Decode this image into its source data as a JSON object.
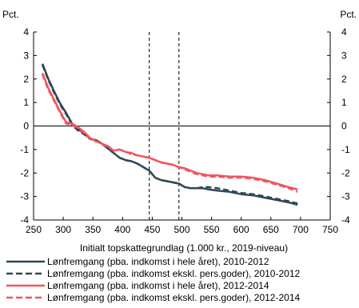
{
  "chart_data": {
    "type": "line",
    "xlabel": "Initialt topskattegrundlag (1.000 kr., 2019-niveau)",
    "ylabel_left": "Pct.",
    "ylabel_right": "Pct.",
    "xlim": [
      250,
      750
    ],
    "ylim": [
      -4,
      4
    ],
    "x_ticks": [
      "250",
      "300",
      "350",
      "400",
      "450",
      "500",
      "550",
      "600",
      "650",
      "700",
      "750"
    ],
    "y_ticks": [
      "-4",
      "-3",
      "-2",
      "-1",
      "0",
      "1",
      "2",
      "3",
      "4"
    ],
    "vertical_lines": [
      445,
      495
    ],
    "grid": false,
    "legend_position": "bottom",
    "series": [
      {
        "name": "Lønfremgang (pba. indkomst i hele året), 2010-2012",
        "color": "#2f4858",
        "dash": "solid",
        "x": [
          265,
          275,
          285,
          295,
          305,
          315,
          325,
          335,
          345,
          355,
          365,
          375,
          385,
          395,
          405,
          415,
          425,
          435,
          445,
          455,
          465,
          475,
          485,
          495,
          505,
          515,
          525,
          535,
          545,
          560,
          580,
          600,
          620,
          640,
          660,
          680,
          695
        ],
        "y": [
          2.65,
          2.0,
          1.45,
          0.95,
          0.55,
          0.1,
          -0.15,
          -0.3,
          -0.55,
          -0.6,
          -0.75,
          -0.95,
          -1.15,
          -1.35,
          -1.45,
          -1.5,
          -1.6,
          -1.75,
          -1.9,
          -2.2,
          -2.3,
          -2.35,
          -2.4,
          -2.45,
          -2.6,
          -2.65,
          -2.65,
          -2.65,
          -2.7,
          -2.75,
          -2.8,
          -2.9,
          -2.95,
          -3.05,
          -3.15,
          -3.25,
          -3.35
        ]
      },
      {
        "name": "Lønfremgang (pba. indkomst ekskl. pers.goder), 2010-2012",
        "color": "#2f4858",
        "dash": "dashed",
        "x": [
          265,
          275,
          285,
          295,
          305,
          315,
          325,
          335,
          345,
          355,
          365,
          375,
          385,
          395,
          405,
          415,
          425,
          435,
          445,
          455,
          465,
          475,
          485,
          495,
          505,
          515,
          525,
          535,
          545,
          560,
          580,
          600,
          620,
          640,
          660,
          680,
          695
        ],
        "y": [
          2.6,
          1.95,
          1.4,
          0.9,
          0.5,
          0.05,
          -0.2,
          -0.35,
          -0.55,
          -0.6,
          -0.75,
          -0.95,
          -1.15,
          -1.35,
          -1.45,
          -1.5,
          -1.6,
          -1.75,
          -1.9,
          -2.2,
          -2.3,
          -2.35,
          -2.4,
          -2.45,
          -2.6,
          -2.65,
          -2.65,
          -2.6,
          -2.6,
          -2.65,
          -2.75,
          -2.85,
          -2.9,
          -3.0,
          -3.1,
          -3.2,
          -3.3
        ]
      },
      {
        "name": "Lønfremgang (pba. indkomst i hele året), 2012-2014",
        "color": "#f0555f",
        "dash": "solid",
        "x": [
          265,
          275,
          285,
          295,
          305,
          315,
          325,
          335,
          345,
          355,
          365,
          375,
          385,
          395,
          405,
          415,
          425,
          435,
          445,
          455,
          465,
          475,
          485,
          495,
          505,
          515,
          525,
          535,
          545,
          560,
          580,
          600,
          620,
          640,
          660,
          680,
          695
        ],
        "y": [
          2.25,
          1.6,
          1.1,
          0.6,
          0.15,
          0.1,
          -0.05,
          -0.25,
          -0.5,
          -0.65,
          -0.75,
          -0.85,
          -1.05,
          -1.0,
          -1.1,
          -1.15,
          -1.25,
          -1.3,
          -1.35,
          -1.45,
          -1.55,
          -1.6,
          -1.65,
          -1.75,
          -1.8,
          -1.9,
          -2.0,
          -2.05,
          -2.1,
          -2.1,
          -2.15,
          -2.15,
          -2.2,
          -2.3,
          -2.45,
          -2.6,
          -2.7
        ]
      },
      {
        "name": "Lønfremgang (pba. indkomst ekskl. pers.goder), 2012-2014",
        "color": "#f0555f",
        "dash": "dashed",
        "x": [
          265,
          275,
          285,
          295,
          305,
          315,
          325,
          335,
          345,
          355,
          365,
          375,
          385,
          395,
          405,
          415,
          425,
          435,
          445,
          455,
          465,
          475,
          485,
          495,
          505,
          515,
          525,
          535,
          545,
          560,
          580,
          600,
          620,
          640,
          660,
          680,
          695
        ],
        "y": [
          2.2,
          1.55,
          1.05,
          0.55,
          0.1,
          0.05,
          -0.1,
          -0.3,
          -0.55,
          -0.65,
          -0.75,
          -0.9,
          -1.05,
          -1.0,
          -1.1,
          -1.2,
          -1.25,
          -1.3,
          -1.35,
          -1.45,
          -1.55,
          -1.6,
          -1.65,
          -1.75,
          -1.85,
          -1.95,
          -2.05,
          -2.1,
          -2.15,
          -2.15,
          -2.2,
          -2.2,
          -2.25,
          -2.35,
          -2.5,
          -2.65,
          -2.8
        ]
      }
    ]
  }
}
